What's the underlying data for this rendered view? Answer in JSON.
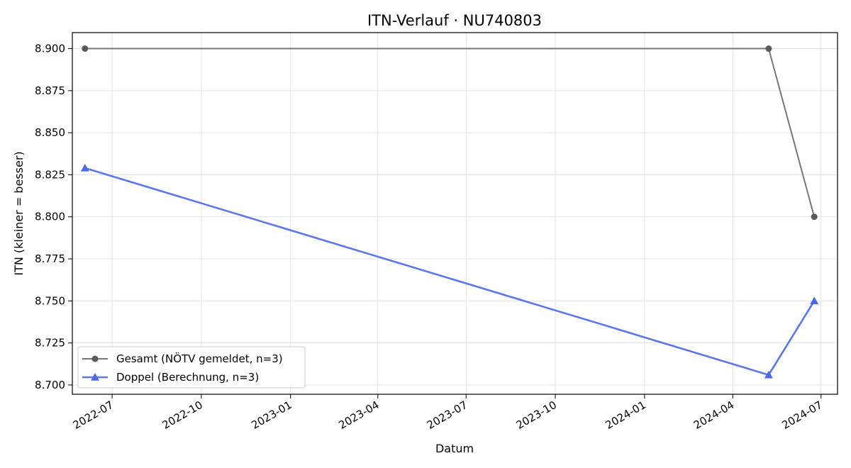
{
  "chart_data": {
    "type": "line",
    "title": "ITN-Verlauf · NU740803",
    "xlabel": "Datum",
    "ylabel": "ITN  (kleiner = besser)",
    "x_type": "date",
    "xlim": [
      "2022-05-21",
      "2024-07-18"
    ],
    "ylim": [
      8.6945,
      8.9095
    ],
    "x_ticks": [
      "2022-07-01",
      "2022-10-01",
      "2023-01-01",
      "2023-04-01",
      "2023-07-01",
      "2023-10-01",
      "2024-01-01",
      "2024-04-01",
      "2024-07-01"
    ],
    "x_tick_labels": [
      "2022-07",
      "2022-10",
      "2023-01",
      "2023-04",
      "2023-07",
      "2023-10",
      "2024-01",
      "2024-04",
      "2024-07"
    ],
    "y_ticks": [
      8.7,
      8.725,
      8.75,
      8.775,
      8.8,
      8.825,
      8.85,
      8.875,
      8.9
    ],
    "y_tick_labels": [
      "8.700",
      "8.725",
      "8.750",
      "8.775",
      "8.800",
      "8.825",
      "8.850",
      "8.875",
      "8.900"
    ],
    "grid": true,
    "legend_position": "lower-left",
    "series": [
      {
        "name": "Gesamt (NÖTV gemeldet, n=3)",
        "color": "#777777",
        "marker_color": "#5a5a5a",
        "marker": "circle",
        "line_width": 2,
        "points": [
          {
            "x": "2022-06-03",
            "y": 8.9
          },
          {
            "x": "2024-05-08",
            "y": 8.9
          },
          {
            "x": "2024-06-24",
            "y": 8.8
          }
        ]
      },
      {
        "name": "Doppel (Berechnung, n=3)",
        "color": "#5b77ec",
        "marker_color": "#4c6ae8",
        "marker": "triangle",
        "line_width": 2.6,
        "points": [
          {
            "x": "2022-06-03",
            "y": 8.829
          },
          {
            "x": "2024-05-08",
            "y": 8.706
          },
          {
            "x": "2024-06-24",
            "y": 8.75
          }
        ]
      }
    ]
  }
}
